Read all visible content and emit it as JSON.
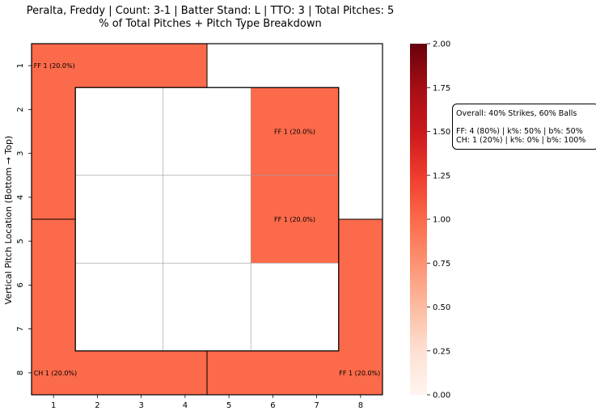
{
  "chart_data": {
    "type": "heatmap",
    "title_line1": "Peralta, Freddy | Count: 3-1 | Batter Stand: L | TTO: 3 | Total Pitches: 5",
    "title_line2": "% of Total Pitches + Pitch Type Breakdown",
    "xlabel": "",
    "ylabel": "Vertical Pitch Location (Bottom → Top)",
    "x_ticks": [
      "1",
      "2",
      "3",
      "4",
      "5",
      "6",
      "7",
      "8"
    ],
    "y_ticks": [
      "1",
      "2",
      "3",
      "4",
      "5",
      "6",
      "7",
      "8"
    ],
    "colorbar": {
      "min": 0.0,
      "max": 2.0,
      "ticks": [
        "0.00",
        "0.25",
        "0.50",
        "0.75",
        "1.00",
        "1.25",
        "1.50",
        "1.75",
        "2.00"
      ],
      "colormap": "Reds"
    },
    "zones": [
      {
        "zone": "outer-top-left",
        "count": 1,
        "label": "FF 1 (20.0%)"
      },
      {
        "zone": "outer-top-right",
        "count": 0,
        "label": ""
      },
      {
        "zone": "outer-bottom-left",
        "count": 1,
        "label": "CH 1 (20.0%)"
      },
      {
        "zone": "outer-bottom-right",
        "count": 1,
        "label": "FF 1 (20.0%)"
      },
      {
        "zone": "inner-r1c1",
        "count": 0,
        "label": ""
      },
      {
        "zone": "inner-r1c2",
        "count": 0,
        "label": ""
      },
      {
        "zone": "inner-r1c3",
        "count": 1,
        "label": "FF 1 (20.0%)"
      },
      {
        "zone": "inner-r2c1",
        "count": 0,
        "label": ""
      },
      {
        "zone": "inner-r2c2",
        "count": 0,
        "label": ""
      },
      {
        "zone": "inner-r2c3",
        "count": 1,
        "label": "FF 1 (20.0%)"
      },
      {
        "zone": "inner-r3c1",
        "count": 0,
        "label": ""
      },
      {
        "zone": "inner-r3c2",
        "count": 0,
        "label": ""
      },
      {
        "zone": "inner-r3c3",
        "count": 0,
        "label": ""
      }
    ],
    "summary": {
      "overall": "Overall: 40% Strikes, 60% Balls",
      "lines": [
        "FF: 4 (80%) | k%: 50% | b%: 50%",
        "CH: 1 (20%) | k%: 0% | b%: 100%"
      ]
    }
  }
}
